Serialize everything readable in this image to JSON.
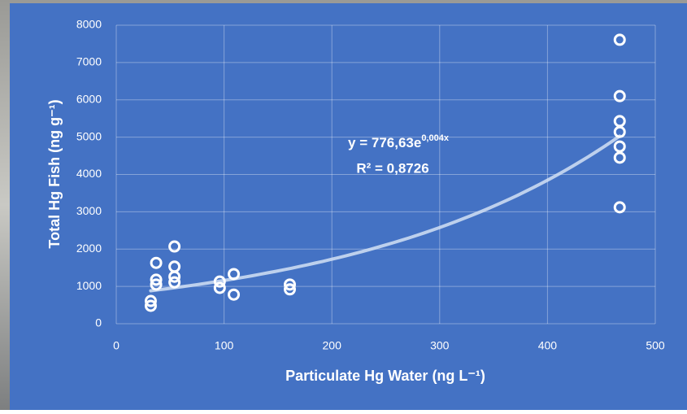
{
  "chart_data": {
    "type": "scatter",
    "xlabel": "Particulate Hg Water (ng L⁻¹)",
    "ylabel": "Total Hg Fish (ng g⁻¹)",
    "series": [
      {
        "color": "#ffffff",
        "x": [
          32,
          32,
          37,
          37,
          37,
          54,
          54,
          54,
          54,
          96,
          96,
          109,
          109,
          161,
          161,
          467,
          467,
          467,
          467,
          467,
          467,
          467
        ],
        "values": [
          610,
          480,
          1630,
          1180,
          1050,
          2070,
          1530,
          1260,
          1110,
          1130,
          960,
          1330,
          780,
          1050,
          920,
          7610,
          6100,
          5430,
          5140,
          4750,
          4450,
          3120
        ]
      }
    ],
    "trendline": {
      "a": 776.63,
      "b": 0.004,
      "equation": "y = 776,63e",
      "exponent": "0,004x",
      "r2_label": "R² = 0,8726"
    },
    "xlim": [
      0,
      500
    ],
    "xticks": [
      0,
      100,
      200,
      300,
      400,
      500
    ],
    "ylim": [
      0,
      8000
    ],
    "yticks": [
      0,
      1000,
      2000,
      3000,
      4000,
      5000,
      6000,
      7000,
      8000
    ],
    "grid": true
  }
}
